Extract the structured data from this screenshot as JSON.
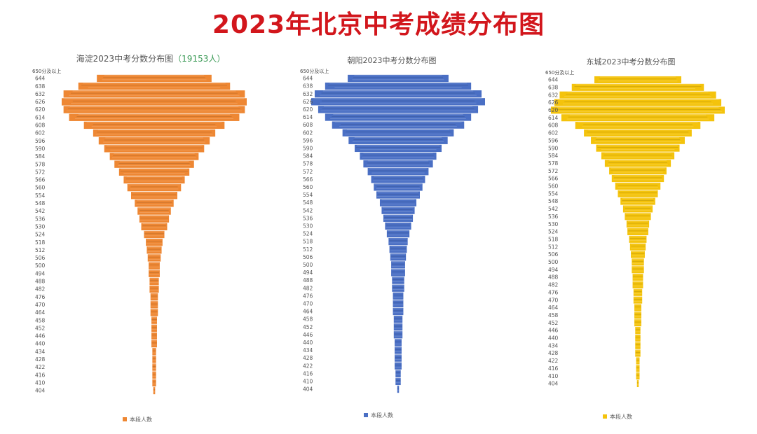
{
  "title": "2023年北京中考成绩分布图",
  "chart_data": [
    {
      "type": "bar",
      "orientation": "horizontal-symmetric",
      "title": "海淀2023中考分数分布图",
      "title_note": "（19153人）",
      "legend": "本段人数",
      "legend_position": "bottom",
      "color": "#ee8733",
      "top_label": "650分及以上",
      "categories": [
        "644",
        "638",
        "632",
        "626",
        "620",
        "614",
        "608",
        "602",
        "596",
        "590",
        "584",
        "578",
        "572",
        "566",
        "560",
        "554",
        "548",
        "542",
        "536",
        "530",
        "524",
        "518",
        "512",
        "506",
        "500",
        "494",
        "488",
        "482",
        "476",
        "470",
        "464",
        "458",
        "452",
        "446",
        "440",
        "434",
        "428",
        "422",
        "416",
        "410",
        "404"
      ],
      "values": [
        62,
        82,
        98,
        100,
        98,
        92,
        76,
        66,
        60,
        54,
        48,
        43,
        38,
        33,
        29,
        25,
        21,
        18,
        16,
        14,
        11,
        9,
        8,
        7,
        6,
        6,
        5,
        5,
        4,
        4,
        4,
        3,
        3,
        3,
        3,
        2,
        2,
        2,
        2,
        2,
        1
      ]
    },
    {
      "type": "bar",
      "orientation": "horizontal-symmetric",
      "title": "朝阳2023中考分数分布图",
      "legend": "本段人数",
      "legend_position": "bottom",
      "color": "#4a6fc4",
      "top_label": "650分及以上",
      "categories": [
        "644",
        "638",
        "632",
        "626",
        "620",
        "614",
        "608",
        "602",
        "596",
        "590",
        "584",
        "578",
        "572",
        "566",
        "560",
        "554",
        "548",
        "542",
        "536",
        "530",
        "524",
        "518",
        "512",
        "506",
        "500",
        "494",
        "488",
        "482",
        "476",
        "470",
        "464",
        "458",
        "452",
        "446",
        "440",
        "434",
        "428",
        "422",
        "416",
        "410",
        "404"
      ],
      "values": [
        58,
        84,
        96,
        100,
        92,
        84,
        76,
        64,
        57,
        50,
        44,
        40,
        35,
        31,
        28,
        25,
        21,
        19,
        17,
        15,
        13,
        11,
        10,
        9,
        8,
        8,
        7,
        7,
        6,
        6,
        6,
        5,
        5,
        5,
        4,
        4,
        4,
        4,
        3,
        3,
        1
      ]
    },
    {
      "type": "bar",
      "orientation": "horizontal-symmetric",
      "title": "东城2023中考分数分布图",
      "legend": "本段人数",
      "legend_position": "bottom",
      "color": "#f4c30c",
      "top_label": "650分及以上",
      "categories": [
        "644",
        "638",
        "632",
        "626",
        "620",
        "614",
        "608",
        "602",
        "596",
        "590",
        "584",
        "578",
        "572",
        "566",
        "560",
        "554",
        "548",
        "542",
        "536",
        "530",
        "524",
        "518",
        "512",
        "506",
        "500",
        "494",
        "488",
        "482",
        "476",
        "470",
        "464",
        "458",
        "452",
        "446",
        "440",
        "434",
        "428",
        "422",
        "416",
        "410",
        "404"
      ],
      "values": [
        50,
        76,
        90,
        96,
        100,
        88,
        72,
        62,
        54,
        48,
        42,
        38,
        33,
        30,
        26,
        23,
        20,
        17,
        15,
        13,
        12,
        10,
        9,
        8,
        7,
        7,
        6,
        6,
        5,
        5,
        4,
        4,
        4,
        3,
        3,
        3,
        3,
        2,
        2,
        2,
        1
      ]
    }
  ]
}
